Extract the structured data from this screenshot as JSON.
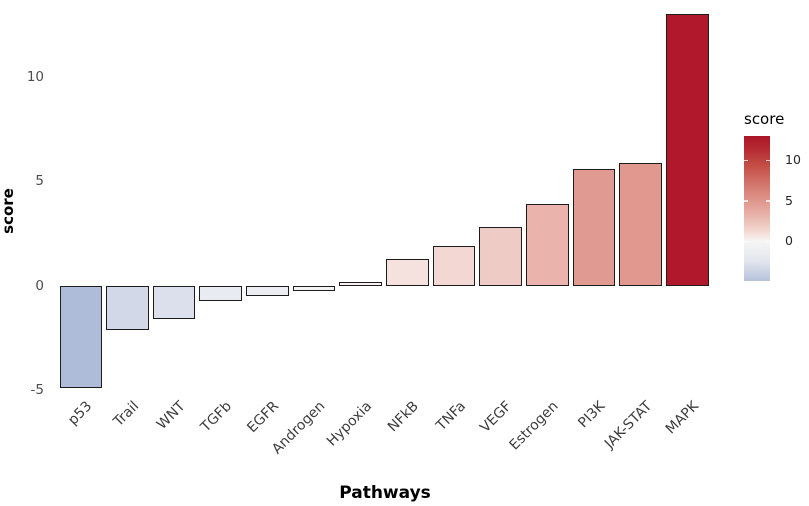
{
  "chart_data": {
    "type": "bar",
    "title": "",
    "xlabel": "Pathways",
    "ylabel": "score",
    "categories": [
      "p53",
      "Trail",
      "WNT",
      "TGFb",
      "EGFR",
      "Androgen",
      "Hypoxia",
      "NFkB",
      "TNFa",
      "VEGF",
      "Estrogen",
      "PI3K",
      "JAK-STAT",
      "MAPK"
    ],
    "values": [
      -4.9,
      -2.1,
      -1.6,
      -0.7,
      -0.5,
      -0.25,
      0.2,
      1.3,
      1.9,
      2.8,
      3.9,
      5.6,
      5.9,
      13.0
    ],
    "bar_colors": [
      "#aebcd9",
      "#d2d8e7",
      "#dcdfec",
      "#e9ebf2",
      "#ebedf3",
      "#f2f2f5",
      "#f7f2f1",
      "#f5e2de",
      "#f2d7d2",
      "#eecbc5",
      "#eab4ac",
      "#e19a92",
      "#e0988f",
      "#b1182b"
    ],
    "bar_border_color": "#1c1c1c",
    "yticks": [
      10,
      5,
      0,
      -5
    ],
    "ylim": [
      -5.3,
      13.3
    ],
    "grid": false,
    "background": "#ffffff",
    "legend": {
      "type": "colorbar",
      "position": "right",
      "title": "score",
      "ticks": [
        10,
        5,
        0
      ],
      "range": [
        -4.9,
        13.0
      ],
      "color_high": "#b1182b",
      "color_mid": "#f7f6f5",
      "color_low": "#b6c2dc",
      "gradient_stops": [
        {
          "pct": 0,
          "color": "#ab1527"
        },
        {
          "pct": 10,
          "color": "#b62d33"
        },
        {
          "pct": 22,
          "color": "#c65349"
        },
        {
          "pct": 38,
          "color": "#d8837a"
        },
        {
          "pct": 52,
          "color": "#e6aba1"
        },
        {
          "pct": 64,
          "color": "#f1d2ca"
        },
        {
          "pct": 72.6,
          "color": "#f7f6f5"
        },
        {
          "pct": 86,
          "color": "#e2e6ee"
        },
        {
          "pct": 100,
          "color": "#b6c2dc"
        }
      ]
    }
  }
}
